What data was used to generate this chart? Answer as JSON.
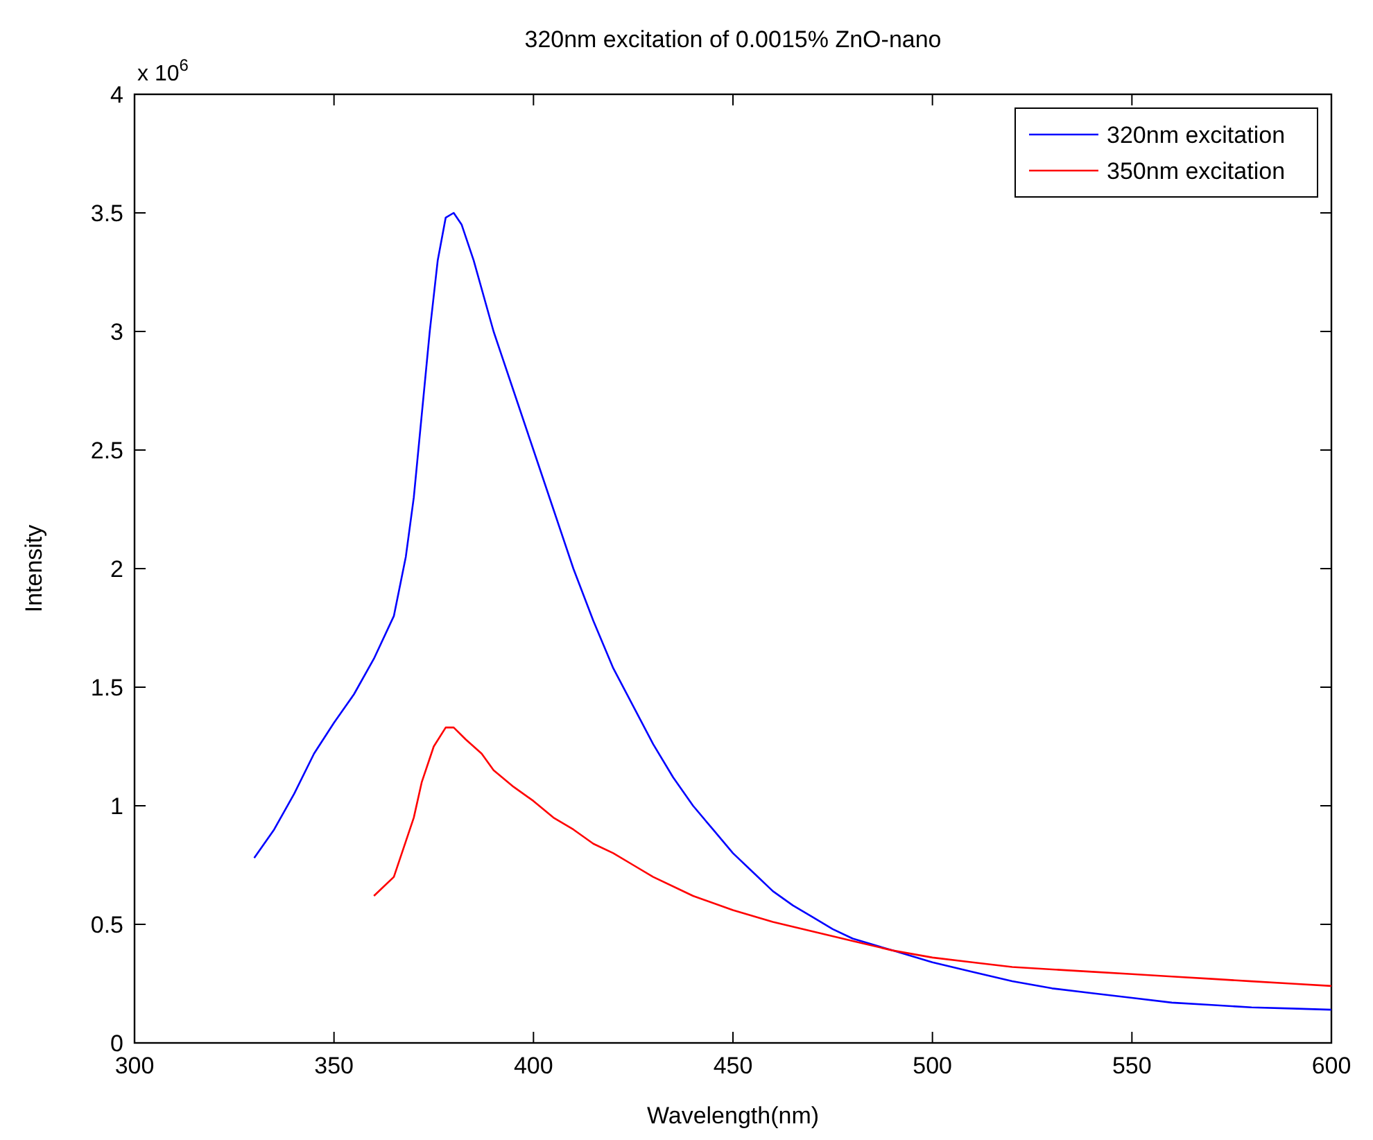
{
  "chart_data": {
    "type": "line",
    "title": "320nm excitation of 0.0015% ZnO-nano",
    "xlabel": "Wavelength(nm)",
    "ylabel": "Intensity",
    "annotations": [
      "x 10$^{6}$"
    ],
    "xlim": [
      300,
      600
    ],
    "xticks": [
      300,
      350,
      400,
      450,
      500,
      550,
      600
    ],
    "ylim": [
      0,
      4
    ],
    "yticks": [
      0,
      0.5,
      1,
      1.5,
      2,
      2.5,
      3,
      3.5,
      4
    ],
    "grid": false,
    "legend": "top right",
    "marker": "none",
    "line_style": "solid",
    "series": [
      {
        "name": "320nm excitation",
        "color": "#0000ff",
        "x": [
          330,
          335,
          340,
          345,
          350,
          355,
          360,
          365,
          368,
          370,
          372,
          374,
          376,
          378,
          380,
          382,
          385,
          390,
          395,
          400,
          405,
          410,
          415,
          420,
          425,
          430,
          435,
          440,
          445,
          450,
          455,
          460,
          465,
          470,
          475,
          480,
          490,
          500,
          510,
          520,
          530,
          540,
          550,
          560,
          570,
          580,
          590,
          600
        ],
        "values": [
          0.78,
          0.9,
          1.05,
          1.22,
          1.35,
          1.47,
          1.62,
          1.8,
          2.05,
          2.3,
          2.65,
          3.0,
          3.3,
          3.48,
          3.5,
          3.45,
          3.3,
          3.0,
          2.75,
          2.5,
          2.25,
          2.0,
          1.78,
          1.58,
          1.42,
          1.26,
          1.12,
          1.0,
          0.9,
          0.8,
          0.72,
          0.64,
          0.58,
          0.53,
          0.48,
          0.44,
          0.39,
          0.34,
          0.3,
          0.26,
          0.23,
          0.21,
          0.19,
          0.17,
          0.16,
          0.15,
          0.145,
          0.14
        ]
      },
      {
        "name": "350nm excitation",
        "color": "#ff0000",
        "x": [
          360,
          365,
          368,
          370,
          372,
          375,
          378,
          380,
          383,
          387,
          390,
          395,
          400,
          405,
          410,
          415,
          420,
          425,
          430,
          440,
          450,
          460,
          470,
          480,
          490,
          500,
          510,
          520,
          530,
          540,
          550,
          560,
          570,
          580,
          590,
          600
        ],
        "values": [
          0.62,
          0.7,
          0.85,
          0.95,
          1.1,
          1.25,
          1.33,
          1.33,
          1.28,
          1.22,
          1.15,
          1.08,
          1.02,
          0.95,
          0.9,
          0.84,
          0.8,
          0.75,
          0.7,
          0.62,
          0.56,
          0.51,
          0.47,
          0.43,
          0.39,
          0.36,
          0.34,
          0.32,
          0.31,
          0.3,
          0.29,
          0.28,
          0.27,
          0.26,
          0.25,
          0.24
        ]
      }
    ]
  }
}
